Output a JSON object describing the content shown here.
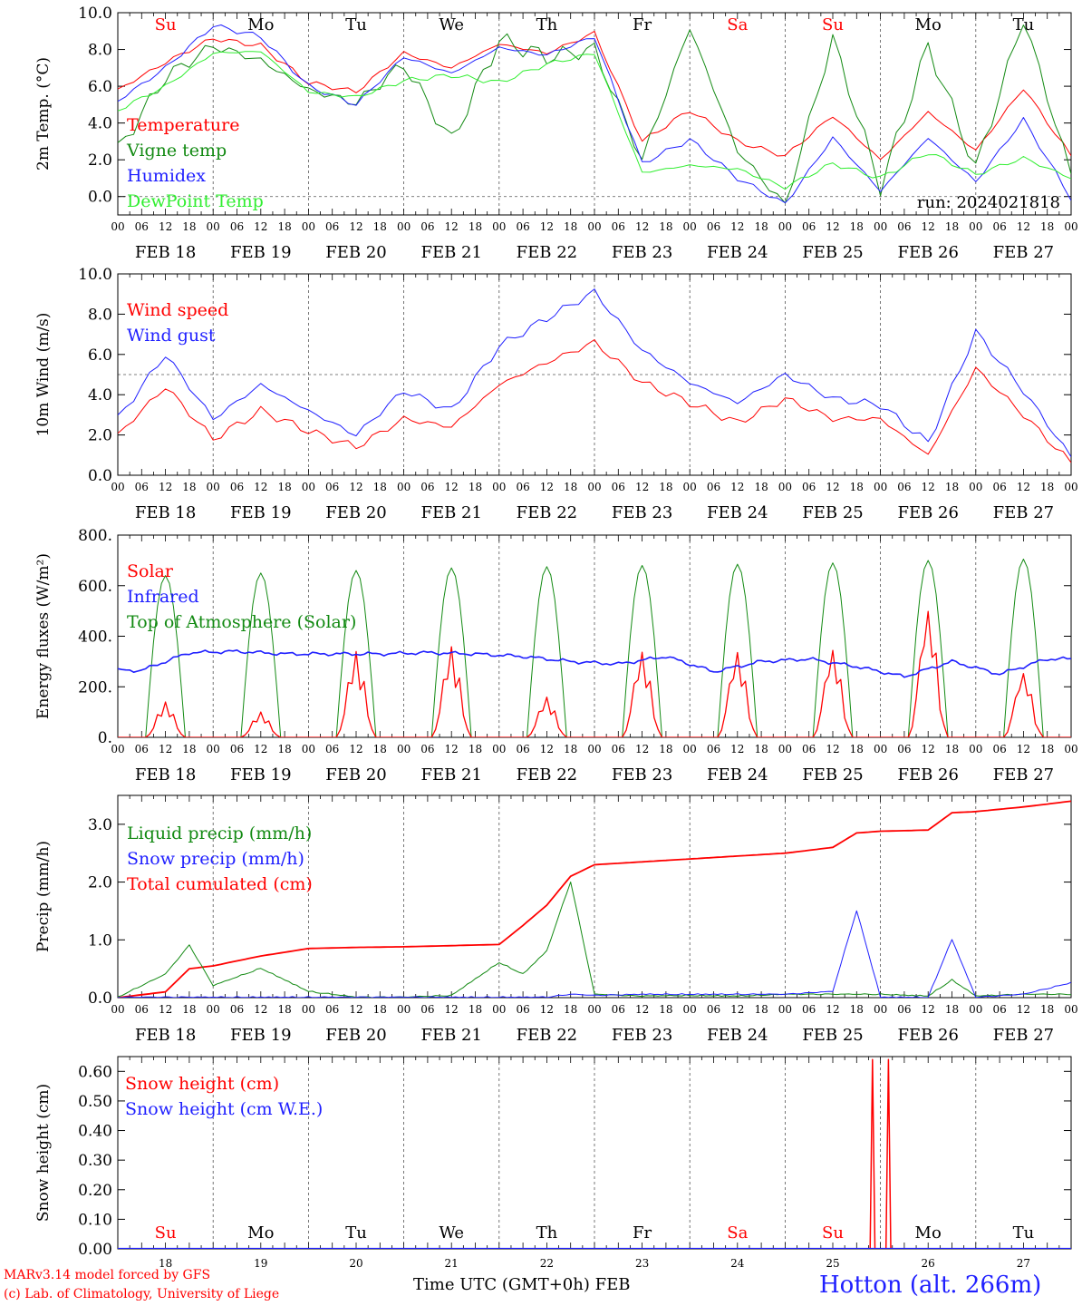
{
  "chart_data": [
    {
      "type": "line",
      "ylabel": "2m Temp. (°C)",
      "ylim": [
        -1,
        10
      ],
      "yticks": [
        "0.0",
        "2.0",
        "4.0",
        "6.0",
        "8.0",
        "10.0"
      ],
      "reference_line": 0,
      "x_hours": [
        0,
        12,
        24,
        36,
        48,
        60,
        72,
        84,
        96,
        108,
        120,
        132,
        144,
        156,
        168,
        180,
        192,
        204,
        216,
        228,
        240
      ],
      "legend": [
        "Temperature",
        "Vigne temp",
        "Humidex",
        "DewPoint Temp"
      ],
      "annotation": "run: 2024021818",
      "series": [
        {
          "name": "Temperature",
          "color": "#ff0000",
          "values": [
            5.8,
            7.3,
            8.6,
            8.2,
            6.2,
            5.7,
            7.8,
            7.0,
            8.3,
            7.8,
            8.9,
            3.0,
            4.7,
            3.0,
            2.2,
            4.4,
            2.0,
            4.6,
            2.5,
            5.9,
            2.2
          ]
        },
        {
          "name": "Vigne temp",
          "color": "#138a13",
          "values": [
            2.5,
            6.5,
            8.2,
            7.4,
            5.8,
            5.1,
            7.2,
            3.0,
            8.5,
            7.6,
            8.0,
            2.0,
            9.2,
            2.5,
            -0.5,
            8.6,
            0.5,
            8.2,
            1.5,
            9.7,
            1.2
          ]
        },
        {
          "name": "Humidex",
          "color": "#1f1fff",
          "values": [
            5.2,
            7.0,
            9.3,
            8.7,
            6.0,
            5.0,
            7.6,
            6.7,
            8.1,
            7.7,
            8.7,
            1.8,
            3.1,
            1.0,
            -0.4,
            3.2,
            0.3,
            3.2,
            0.8,
            4.2,
            -0.1
          ]
        },
        {
          "name": "DewPoint Temp",
          "color": "#30ee30",
          "values": [
            4.7,
            6.0,
            7.8,
            7.9,
            5.7,
            5.4,
            6.3,
            6.6,
            6.2,
            7.2,
            7.8,
            1.3,
            1.7,
            1.5,
            0.5,
            1.8,
            1.0,
            2.4,
            1.2,
            2.1,
            1.0
          ]
        }
      ]
    },
    {
      "type": "line",
      "ylabel": "10m Wind (m/s)",
      "ylim": [
        0,
        10
      ],
      "yticks": [
        "0.0",
        "2.0",
        "4.0",
        "6.0",
        "8.0",
        "10.0"
      ],
      "reference_line": 5,
      "x_hours": [
        0,
        12,
        24,
        36,
        48,
        60,
        72,
        84,
        96,
        108,
        120,
        132,
        144,
        156,
        168,
        180,
        192,
        204,
        216,
        228,
        240
      ],
      "legend": [
        "Wind speed",
        "Wind gust"
      ],
      "series": [
        {
          "name": "Wind speed",
          "color": "#ff0000",
          "values": [
            2.0,
            4.4,
            1.8,
            3.2,
            2.2,
            1.4,
            2.8,
            2.4,
            4.5,
            5.6,
            6.6,
            4.6,
            3.6,
            2.6,
            3.8,
            2.8,
            2.8,
            1.0,
            5.3,
            3.0,
            0.6
          ]
        },
        {
          "name": "Wind gust",
          "color": "#1f1fff",
          "values": [
            2.8,
            6.0,
            2.8,
            4.5,
            3.2,
            2.0,
            4.2,
            3.2,
            6.4,
            7.8,
            9.1,
            6.2,
            4.6,
            3.6,
            5.0,
            3.8,
            3.5,
            1.6,
            7.1,
            4.2,
            0.9
          ]
        }
      ]
    },
    {
      "type": "line",
      "ylabel": "Energy fluxes (W/m²)",
      "ylim": [
        0,
        800
      ],
      "yticks": [
        "0.",
        "200.",
        "400.",
        "600.",
        "800."
      ],
      "legend": [
        "Solar",
        "Infrared",
        "Top of Atmosphere (Solar)"
      ],
      "toa_peaks": [
        640,
        650,
        660,
        670,
        675,
        680,
        685,
        690,
        700,
        705
      ],
      "solar_peaks": [
        140,
        100,
        340,
        360,
        160,
        340,
        340,
        350,
        510,
        260
      ],
      "infrared_base": [
        265,
        335,
        340,
        330,
        330,
        330,
        335,
        330,
        320,
        300,
        290,
        320,
        260,
        300,
        310,
        280,
        240,
        300,
        250,
        310
      ],
      "series": [
        {
          "name": "Solar",
          "color": "#ff0000"
        },
        {
          "name": "Infrared",
          "color": "#1f1fff"
        },
        {
          "name": "Top of Atmosphere (Solar)",
          "color": "#138a13"
        }
      ]
    },
    {
      "type": "line",
      "ylabel": "Precip (mm/h)",
      "ylim": [
        0,
        3.5
      ],
      "yticks": [
        "0.0",
        "1.0",
        "2.0",
        "3.0"
      ],
      "x_hours": [
        0,
        12,
        18,
        24,
        36,
        48,
        60,
        72,
        84,
        96,
        102,
        108,
        114,
        120,
        132,
        144,
        156,
        168,
        180,
        186,
        192,
        204,
        210,
        216,
        228,
        240
      ],
      "legend": [
        "Liquid precip (mm/h)",
        "Snow precip (mm/h)",
        "Total cumulated (cm)"
      ],
      "series": [
        {
          "name": "Total cumulated (cm)",
          "color": "#ff0000",
          "values": [
            0,
            0.1,
            0.5,
            0.55,
            0.72,
            0.85,
            0.87,
            0.88,
            0.9,
            0.92,
            1.25,
            1.6,
            2.1,
            2.3,
            2.35,
            2.4,
            2.45,
            2.5,
            2.6,
            2.85,
            2.88,
            2.9,
            3.2,
            3.22,
            3.3,
            3.4
          ]
        },
        {
          "name": "Liquid precip (mm/h)",
          "color": "#138a13",
          "values": [
            0,
            0.4,
            0.9,
            0.2,
            0.5,
            0.1,
            0,
            0,
            0.03,
            0.6,
            0.4,
            0.8,
            2.0,
            0.05,
            0.02,
            0.03,
            0.02,
            0.05,
            0.05,
            0.05,
            0.05,
            0.02,
            0.3,
            0.02,
            0.05,
            0.05
          ]
        },
        {
          "name": "Snow precip (mm/h)",
          "color": "#1f1fff",
          "values": [
            0,
            0,
            0,
            0,
            0,
            0,
            0,
            0,
            0,
            0,
            0,
            0,
            0.05,
            0.03,
            0.05,
            0.05,
            0.05,
            0.05,
            0.1,
            1.5,
            0,
            0,
            1.0,
            0,
            0.05,
            0.25
          ]
        }
      ]
    },
    {
      "type": "line",
      "ylabel": "Snow height (cm)",
      "ylim": [
        0,
        0.65
      ],
      "yticks": [
        "0.00",
        "0.10",
        "0.20",
        "0.30",
        "0.40",
        "0.50",
        "0.60"
      ],
      "legend": [
        "Snow height (cm)",
        "Snow height (cm W.E.)"
      ],
      "snow_spikes_hours": [
        190,
        194
      ],
      "snow_spike_value": 0.64,
      "series": [
        {
          "name": "Snow height (cm)",
          "color": "#ff0000"
        },
        {
          "name": "Snow height (cm W.E.)",
          "color": "#1f1fff"
        }
      ]
    }
  ],
  "days": [
    "Su",
    "Mo",
    "Tu",
    "We",
    "Th",
    "Fr",
    "Sa",
    "Su",
    "Mo",
    "Tu"
  ],
  "day_colors": [
    "#ff0000",
    "#000000",
    "#000000",
    "#000000",
    "#000000",
    "#000000",
    "#ff0000",
    "#ff0000",
    "#000000",
    "#000000"
  ],
  "day_numbers": [
    "18",
    "19",
    "20",
    "21",
    "22",
    "23",
    "24",
    "25",
    "26",
    "27"
  ],
  "date_labels": [
    "FEB 18",
    "FEB 19",
    "FEB 20",
    "FEB 21",
    "FEB 22",
    "FEB 23",
    "FEB 24",
    "FEB 25",
    "FEB 26",
    "FEB 27"
  ],
  "hour_labels": [
    "00",
    "06",
    "12",
    "18"
  ],
  "footer": {
    "credit1": "MARv3.14 model forced by GFS",
    "credit2": "(c) Lab. of Climatology, University of Liege",
    "xaxis": "Time UTC (GMT+0h) FEB",
    "station": "Hotton (alt. 266m)"
  }
}
